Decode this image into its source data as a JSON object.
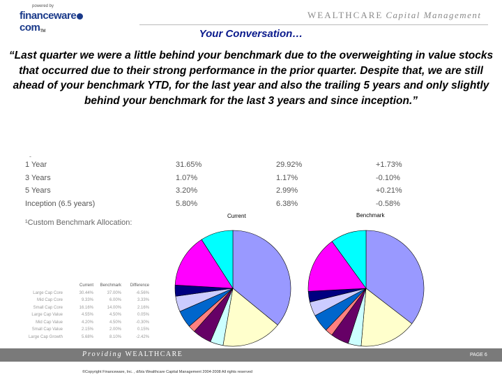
{
  "logo": {
    "small": "powered by",
    "main": "financeware",
    "suffix": "com",
    "tm": "TM"
  },
  "brand": {
    "name": "WEALTHCARE",
    "sub": "Capital Management"
  },
  "title": "Your Conversation…",
  "quote": "“Last quarter we were a little behind your benchmark due to the overweighting in value stocks that occurred due to their strong performance in the prior quarter. Despite that, we are still ahead of your benchmark YTD, for the last year and also the trailing 5 years and only slightly behind your benchmark for the last 3 years and since inception.”",
  "performance": {
    "tick": "-",
    "rows": [
      {
        "period": "1 Year",
        "portfolio": "31.65%",
        "benchmark": "29.92%",
        "difference": "+1.73%"
      },
      {
        "period": "3 Years",
        "portfolio": "1.07%",
        "benchmark": "1.17%",
        "difference": "-0.10%"
      },
      {
        "period": "5 Years",
        "portfolio": "3.20%",
        "benchmark": "2.99%",
        "difference": "+0.21%"
      },
      {
        "period": "Inception (6.5 years)",
        "portfolio": "5.80%",
        "benchmark": "6.38%",
        "difference": "-0.58%"
      }
    ]
  },
  "footnote": "¹Custom Benchmark Allocation:",
  "allocation": {
    "headers": [
      "Current",
      "Benchmark",
      "Difference"
    ],
    "rows": [
      {
        "label": "Large Cap Core",
        "current": "30.44%",
        "benchmark": "37.00%",
        "difference": "-6.56%"
      },
      {
        "label": "Mid Cap Core",
        "current": "9.33%",
        "benchmark": "6.00%",
        "difference": "3.33%"
      },
      {
        "label": "Small Cap Core",
        "current": "16.16%",
        "benchmark": "14.00%",
        "difference": "2.16%"
      },
      {
        "label": "Large Cap Value",
        "current": "4.55%",
        "benchmark": "4.50%",
        "difference": "0.05%"
      },
      {
        "label": "Mid Cap Value",
        "current": "4.20%",
        "benchmark": "4.50%",
        "difference": "-0.30%"
      },
      {
        "label": "Small Cap Value",
        "current": "2.15%",
        "benchmark": "2.00%",
        "difference": "0.15%"
      },
      {
        "label": "Large Cap Growth",
        "current": "5.68%",
        "benchmark": "8.10%",
        "difference": "-2.42%"
      }
    ]
  },
  "chart_data": [
    {
      "type": "pie",
      "title": "Current",
      "values": [
        39.5,
        18.5,
        4.0,
        5.8,
        2.2,
        5.3,
        4.8,
        3.4,
        16.5,
        10.0
      ],
      "colors": [
        "#9999ff",
        "#ffffcc",
        "#ccffff",
        "#660066",
        "#ff8080",
        "#0066cc",
        "#ccccff",
        "#000080",
        "#ff00ff",
        "#00ffff"
      ]
    },
    {
      "type": "pie",
      "title": "Benchmark",
      "values": [
        39.0,
        17.5,
        4.0,
        5.6,
        2.3,
        5.5,
        4.4,
        3.3,
        17.4,
        11.0
      ],
      "colors": [
        "#9999ff",
        "#ffffcc",
        "#ccffff",
        "#660066",
        "#ff8080",
        "#0066cc",
        "#ccccff",
        "#000080",
        "#ff00ff",
        "#00ffff"
      ]
    }
  ],
  "footer": {
    "prefix": "Providing",
    "brand": "WEALTHCARE",
    "page": "PAGE 6",
    "copyright": "©Copyright Financeware, Inc. , d/b/a Wealthcare Capital Management 2004-2008 All rights reserved"
  }
}
